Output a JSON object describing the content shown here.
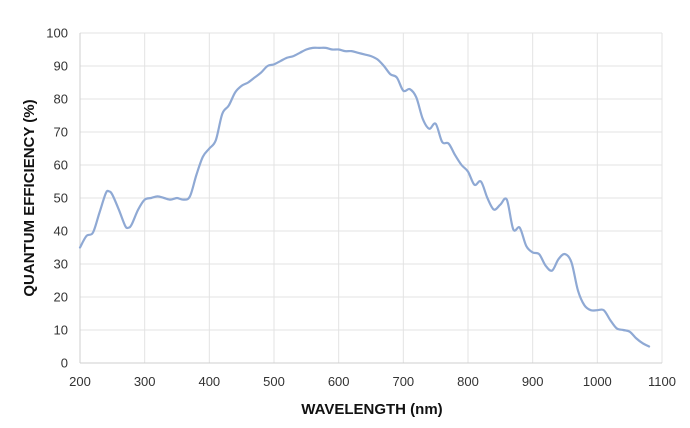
{
  "chart_data": {
    "type": "line",
    "title": "",
    "xlabel": "WAVELENGTH (nm)",
    "ylabel": "QUANTUM EFFICIENCY (%)",
    "xlim": [
      200,
      1100
    ],
    "ylim": [
      0,
      100
    ],
    "xticks": [
      200,
      300,
      400,
      500,
      600,
      700,
      800,
      900,
      1000,
      1100
    ],
    "yticks": [
      0,
      10,
      20,
      30,
      40,
      50,
      60,
      70,
      80,
      90,
      100
    ],
    "grid": true,
    "color": "#8fa9d4",
    "series": [
      {
        "x": [
          200,
          210,
          220,
          230,
          240,
          245,
          250,
          260,
          270,
          275,
          280,
          290,
          300,
          310,
          320,
          330,
          340,
          350,
          360,
          370,
          380,
          390,
          400,
          410,
          420,
          430,
          440,
          450,
          460,
          470,
          480,
          490,
          500,
          510,
          520,
          530,
          540,
          550,
          560,
          570,
          580,
          590,
          600,
          610,
          620,
          630,
          640,
          650,
          660,
          670,
          680,
          690,
          700,
          710,
          720,
          730,
          740,
          750,
          760,
          770,
          780,
          790,
          800,
          810,
          820,
          830,
          840,
          850,
          860,
          870,
          880,
          890,
          900,
          910,
          920,
          930,
          940,
          950,
          960,
          970,
          980,
          990,
          1000,
          1010,
          1020,
          1030,
          1040,
          1050,
          1060,
          1070,
          1080
        ],
        "y": [
          35,
          38.5,
          39.5,
          45.5,
          51.5,
          52,
          51,
          46.5,
          41.5,
          41,
          42,
          46.5,
          49.5,
          50,
          50.5,
          50,
          49.5,
          50,
          49.5,
          50.5,
          57,
          62.5,
          65,
          67.5,
          75.5,
          78,
          82,
          84,
          85,
          86.5,
          88,
          90,
          90.5,
          91.5,
          92.5,
          93,
          94,
          95,
          95.5,
          95.5,
          95.5,
          95,
          95,
          94.5,
          94.5,
          94,
          93.5,
          93,
          92,
          90,
          87.5,
          86.5,
          82.5,
          83,
          80.5,
          74,
          71,
          72.5,
          67,
          66.5,
          63,
          60,
          58,
          54,
          55,
          50,
          46.5,
          48,
          49.5,
          40.5,
          41,
          35.5,
          33.5,
          33,
          29.5,
          28,
          31.5,
          33,
          30.5,
          22,
          17.5,
          16,
          16,
          16,
          13,
          10.5,
          10,
          9.5,
          7.5,
          6,
          5
        ]
      }
    ]
  }
}
